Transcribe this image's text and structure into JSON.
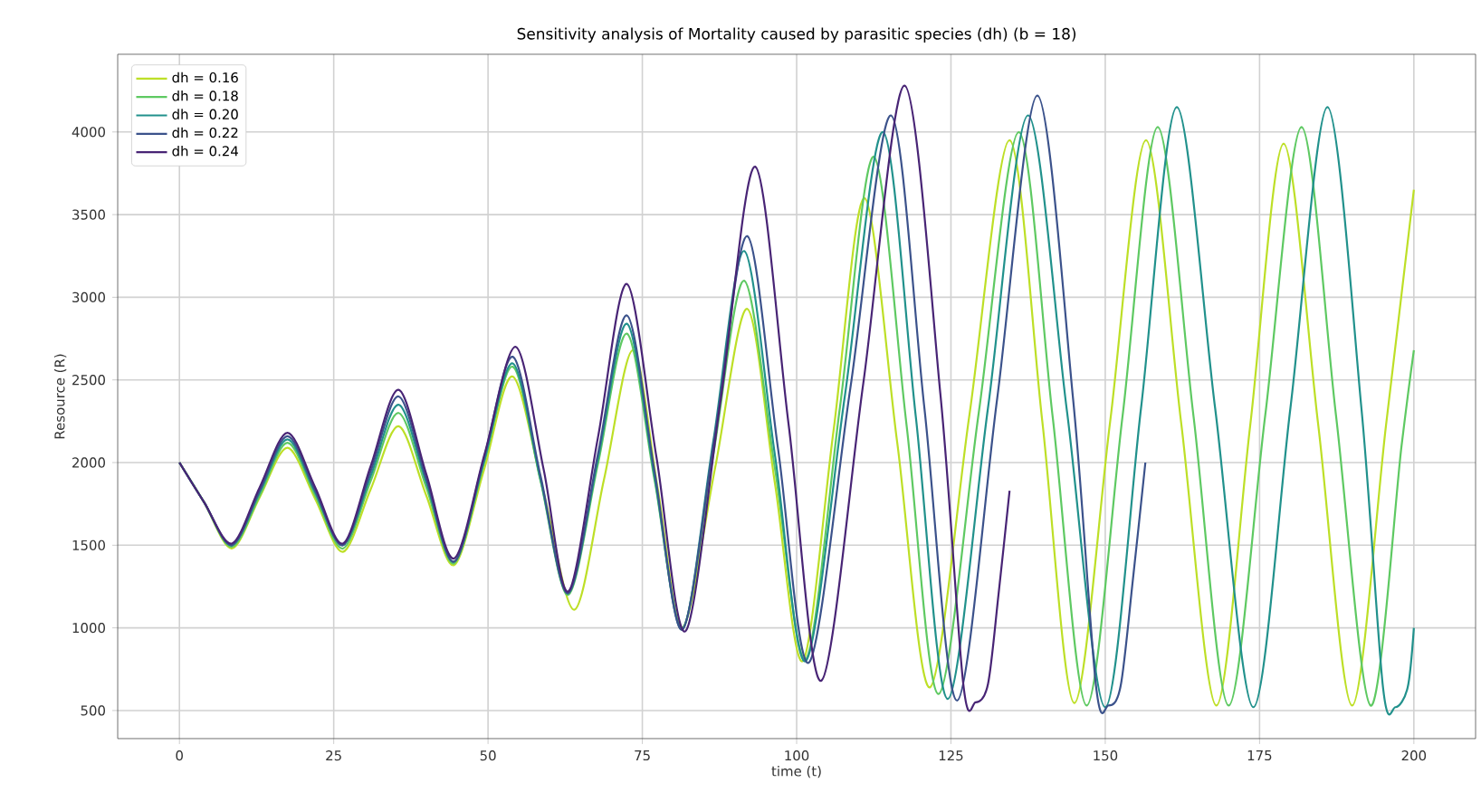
{
  "chart_data": {
    "type": "line",
    "title": "Sensitivity analysis of Mortality caused by parasitic species (dh) (b = 18)",
    "xlabel": "time (t)",
    "ylabel": "Resource (R)",
    "xlim": [
      -10,
      210
    ],
    "ylim": [
      330,
      4470
    ],
    "xticks": [
      0,
      25,
      50,
      75,
      100,
      125,
      150,
      175,
      200
    ],
    "yticks": [
      500,
      1000,
      1500,
      2000,
      2500,
      3000,
      3500,
      4000
    ],
    "grid": true,
    "legend": "top left",
    "series": [
      {
        "name": "dh = 0.16",
        "color": "#bddf26",
        "x": [
          0,
          4,
          8.5,
          13,
          17.5,
          22,
          26.5,
          31,
          35.5,
          40,
          44.5,
          49.3,
          54,
          59,
          64,
          68.8,
          73.5,
          77.5,
          81.5,
          86.8,
          92,
          96.5,
          101,
          106,
          111,
          116.3,
          121.6,
          128,
          134.5,
          139.8,
          145,
          150.8,
          156.6,
          162.3,
          168,
          173.5,
          178.9,
          184.5,
          190,
          195.5,
          200
        ],
        "values": [
          2000,
          1760,
          1480,
          1790,
          2090,
          1780,
          1460,
          1840,
          2220,
          1800,
          1380,
          1950,
          2520,
          1820,
          1110,
          1900,
          2680,
          1840,
          1000,
          1970,
          2930,
          1870,
          800,
          2200,
          3600,
          2120,
          640,
          2290,
          3950,
          2250,
          545,
          2250,
          3950,
          2240,
          530,
          2230,
          3930,
          2230,
          530,
          2230,
          3650
        ]
      },
      {
        "name": "dh = 0.18",
        "color": "#5ec962",
        "x": [
          0,
          4,
          8.5,
          13,
          17.5,
          22,
          26.5,
          31,
          35.5,
          40,
          44.5,
          49.3,
          54,
          58.5,
          63,
          67.8,
          72.5,
          77,
          81.5,
          86.5,
          91.5,
          96.5,
          101.5,
          107,
          112.5,
          117.8,
          123,
          129.5,
          136,
          141.5,
          147,
          152.8,
          158.5,
          164.3,
          170,
          175.9,
          181.8,
          187.4,
          193,
          198,
          200
        ],
        "values": [
          2000,
          1760,
          1490,
          1800,
          2120,
          1800,
          1480,
          1890,
          2300,
          1850,
          1390,
          1990,
          2580,
          1890,
          1200,
          1990,
          2780,
          1890,
          1000,
          2050,
          3100,
          1960,
          810,
          2330,
          3850,
          2230,
          600,
          2300,
          4000,
          2270,
          530,
          2280,
          4030,
          2280,
          530,
          2280,
          4030,
          2280,
          530,
          2100,
          2680
        ]
      },
      {
        "name": "dh = 0.20",
        "color": "#21918c",
        "x": [
          0,
          4,
          8.5,
          13,
          17.5,
          22,
          26.5,
          31,
          35.5,
          40,
          44.5,
          49.3,
          54,
          58.5,
          63,
          67.8,
          72.5,
          77,
          81.5,
          86.5,
          91.5,
          96.5,
          101.5,
          107.8,
          114,
          119.3,
          124.5,
          131,
          137.5,
          143.8,
          150,
          155.8,
          161.6,
          167.8,
          174,
          180,
          186,
          191.5,
          195,
          197,
          199,
          200
        ],
        "values": [
          2000,
          1760,
          1500,
          1820,
          2140,
          1820,
          1500,
          1920,
          2350,
          1880,
          1400,
          2000,
          2600,
          1900,
          1210,
          2020,
          2840,
          1910,
          990,
          2130,
          3280,
          2040,
          800,
          2400,
          4000,
          2280,
          570,
          2330,
          4100,
          2310,
          520,
          2330,
          4150,
          2330,
          520,
          2330,
          4150,
          2330,
          640,
          520,
          640,
          1000
        ]
      },
      {
        "name": "dh = 0.22",
        "color": "#3b528b",
        "x": [
          0,
          4,
          8.5,
          13,
          17.5,
          22,
          26.5,
          31,
          35.5,
          40,
          44.5,
          49.3,
          54,
          58.5,
          63,
          67.8,
          72.5,
          77,
          81.5,
          86.8,
          92,
          97,
          102,
          108.7,
          115.3,
          120.7,
          126,
          132.5,
          139,
          144.8,
          148.5,
          150.5,
          152.5,
          154.5,
          156.5
        ],
        "values": [
          2000,
          1760,
          1500,
          1830,
          2160,
          1830,
          1500,
          1950,
          2400,
          1900,
          1400,
          2020,
          2640,
          1920,
          1210,
          2050,
          2890,
          1940,
          990,
          2180,
          3370,
          2080,
          790,
          2450,
          4100,
          2330,
          560,
          2390,
          4220,
          2380,
          650,
          530,
          650,
          1300,
          2000
        ]
      },
      {
        "name": "dh = 0.24",
        "color": "#482475",
        "x": [
          0,
          4,
          8.5,
          13,
          17.5,
          22,
          26.5,
          31,
          35.5,
          40,
          44.5,
          49.5,
          54.5,
          59,
          63,
          67.8,
          72.5,
          77.3,
          82,
          87.7,
          93.3,
          98.7,
          104,
          110.8,
          117.5,
          123.3,
          127,
          129,
          131,
          132.7,
          134.5
        ],
        "values": [
          2000,
          1760,
          1510,
          1850,
          2180,
          1850,
          1510,
          1980,
          2440,
          1930,
          1420,
          2060,
          2700,
          1960,
          1220,
          2150,
          3080,
          2030,
          980,
          2380,
          3790,
          2230,
          680,
          2480,
          4280,
          2410,
          660,
          550,
          660,
          1200,
          1830
        ]
      }
    ]
  }
}
